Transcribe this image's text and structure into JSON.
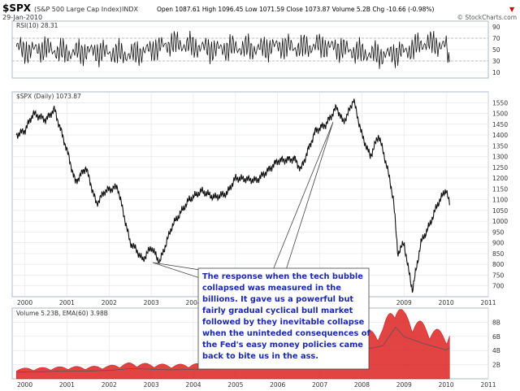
{
  "header": {
    "symbol": "$SPX",
    "name": "(S&P 500 Large Cap Index)",
    "exchange": "INDX",
    "date": "29-Jan-2010",
    "quote": "Open 1087.61  High 1096.45  Low 1071.59  Close 1073.87  Volume 5.2B  Chg -10.66 (-0.98%)",
    "change_arrow": "▼",
    "watermark": "© StockCharts.com"
  },
  "colors": {
    "border": "#aeb8c8",
    "grid": "#e0e3ea",
    "price_line": "#111111",
    "down_tint": "#cc0000",
    "volume_fill": "#dd2222",
    "callout_text": "#1a2aa8",
    "callout_border": "#444444",
    "legend_text": "#333333"
  },
  "chart_data": [
    {
      "type": "line",
      "panel": "rsi",
      "legend": "RSI(10) 28.31",
      "ylim": [
        0,
        100
      ],
      "yticks": [
        10,
        30,
        50,
        70,
        90
      ],
      "levels": [
        30,
        70
      ],
      "x_range": [
        1999.7,
        2011.0
      ],
      "x": [
        1999.8,
        2000.0,
        2000.5,
        2001.0,
        2001.5,
        2002.0,
        2002.5,
        2003.0,
        2003.5,
        2004.0,
        2004.5,
        2005.0,
        2005.5,
        2006.0,
        2006.5,
        2007.0,
        2007.5,
        2008.0,
        2008.5,
        2009.0,
        2009.5,
        2010.0,
        2010.08
      ],
      "y": [
        55,
        48,
        52,
        44,
        47,
        45,
        41,
        50,
        61,
        56,
        50,
        54,
        51,
        56,
        53,
        57,
        52,
        44,
        40,
        46,
        62,
        56,
        28
      ]
    },
    {
      "type": "line",
      "panel": "price",
      "legend": "$SPX (Daily) 1073.87",
      "ylim": [
        650,
        1600
      ],
      "yticks": [
        700,
        750,
        800,
        850,
        900,
        950,
        1000,
        1050,
        1100,
        1150,
        1200,
        1250,
        1300,
        1350,
        1400,
        1450,
        1500,
        1550
      ],
      "x_range": [
        1999.7,
        2011.0
      ],
      "x_ticks": [
        "2000",
        "2001",
        "2002",
        "2003",
        "2004",
        "2005",
        "2006",
        "2007",
        "2008",
        "2009",
        "2010",
        "2011"
      ],
      "x": [
        1999.8,
        2000.0,
        2000.2,
        2000.5,
        2000.7,
        2001.0,
        2001.2,
        2001.45,
        2001.7,
        2001.9,
        2002.2,
        2002.5,
        2002.6,
        2002.8,
        2003.0,
        2003.2,
        2003.5,
        2003.9,
        2004.2,
        2004.5,
        2004.8,
        2005.0,
        2005.5,
        2005.8,
        2006.0,
        2006.4,
        2006.55,
        2006.9,
        2007.15,
        2007.4,
        2007.55,
        2007.65,
        2007.8,
        2008.0,
        2008.2,
        2008.4,
        2008.6,
        2008.75,
        2008.85,
        2009.0,
        2009.1,
        2009.2,
        2009.4,
        2009.6,
        2009.8,
        2010.0,
        2010.08
      ],
      "y": [
        1400,
        1420,
        1500,
        1470,
        1520,
        1330,
        1180,
        1250,
        1080,
        1140,
        1160,
        900,
        880,
        820,
        880,
        810,
        980,
        1100,
        1140,
        1110,
        1130,
        1200,
        1190,
        1240,
        1280,
        1290,
        1240,
        1420,
        1450,
        1530,
        1460,
        1490,
        1565,
        1400,
        1300,
        1400,
        1250,
        1100,
        850,
        900,
        780,
        680,
        900,
        980,
        1080,
        1150,
        1074
      ]
    },
    {
      "type": "bar",
      "panel": "volume",
      "legend": "Volume 5.23B, EMA(60) 3.98B",
      "ylim": [
        0,
        10
      ],
      "yticks": [
        "2B",
        "4B",
        "6B",
        "8B"
      ],
      "x_range": [
        1999.7,
        2011.0
      ],
      "x_ticks": [
        "2000",
        "2001",
        "2002",
        "2003",
        "2004",
        "2005",
        "2006",
        "2007",
        "2008",
        "2009",
        "2010",
        "2011"
      ],
      "x": [
        1999.8,
        2000.5,
        2001.0,
        2001.5,
        2002.0,
        2002.5,
        2003.0,
        2003.5,
        2004.0,
        2004.5,
        2005.0,
        2005.5,
        2006.0,
        2006.5,
        2007.0,
        2007.5,
        2008.0,
        2008.5,
        2008.8,
        2009.0,
        2009.5,
        2010.0,
        2010.08
      ],
      "y": [
        1.1,
        1.2,
        1.3,
        1.3,
        1.4,
        1.7,
        1.6,
        1.5,
        1.6,
        1.6,
        1.8,
        2.0,
        2.3,
        2.6,
        3.0,
        3.8,
        4.8,
        5.5,
        8.6,
        7.0,
        5.8,
        4.8,
        5.2
      ]
    }
  ],
  "annotation": {
    "text": [
      "The response when the tech bubble",
      "collapsed was measured in the",
      "billions. It gave us a powerful but",
      "fairly gradual cyclical bull market",
      "followed by they inevitable collapse",
      "when the uninteded consequences of",
      "the Fed's easy money policies came",
      "back to bite us in the ass."
    ]
  }
}
